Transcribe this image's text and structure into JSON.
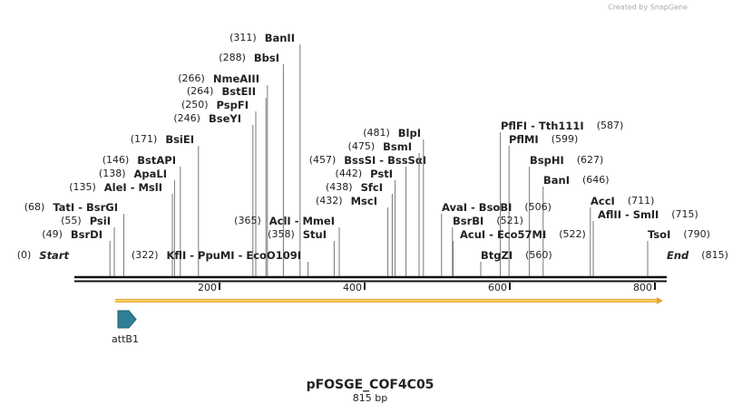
{
  "watermark": "Created by SnapGene",
  "map": {
    "title": "pFOSGE_COF4C05",
    "subtitle": "815 bp",
    "start": {
      "label": "Start",
      "site": {
        "value": 0,
        "label": "(0)"
      }
    },
    "end": {
      "label": "End",
      "site": {
        "value": 815,
        "label": "(815)"
      }
    },
    "ticks": [
      200,
      400,
      600,
      800
    ],
    "features": [
      {
        "label": "attB1"
      }
    ],
    "sites": [
      {
        "label": "BanII",
        "site": {
          "value": 311,
          "label": "(311)"
        }
      },
      {
        "label": "BbsI",
        "site": {
          "value": 288,
          "label": "(288)"
        }
      },
      {
        "label": "NmeAIII",
        "site": {
          "value": 266,
          "label": "(266)"
        }
      },
      {
        "label": "BstEII",
        "site": {
          "value": 264,
          "label": "(264)"
        }
      },
      {
        "label": "PspFI",
        "site": {
          "value": 250,
          "label": "(250)"
        }
      },
      {
        "label": "BseYI",
        "site": {
          "value": 246,
          "label": "(246)"
        }
      },
      {
        "label": "BsiEI",
        "site": {
          "value": 171,
          "label": "(171)"
        }
      },
      {
        "label": "BstAPI",
        "site": {
          "value": 146,
          "label": "(146)"
        }
      },
      {
        "label": "ApaLI",
        "site": {
          "value": 138,
          "label": "(138)"
        }
      },
      {
        "label": "AleI - MslI",
        "site": {
          "value": 135,
          "label": "(135)"
        }
      },
      {
        "label": "TatI - BsrGI",
        "site": {
          "value": 68,
          "label": "(68)"
        }
      },
      {
        "label": "PsiI",
        "site": {
          "value": 55,
          "label": "(55)"
        }
      },
      {
        "label": "BsrDI",
        "site": {
          "value": 49,
          "label": "(49)"
        }
      },
      {
        "label": "KflI - PpuMI - EcoO109I",
        "site": {
          "value": 322,
          "label": "(322)"
        }
      },
      {
        "label": "AclI - MmeI",
        "site": {
          "value": 365,
          "label": "(365)"
        }
      },
      {
        "label": "StuI",
        "site": {
          "value": 358,
          "label": "(358)"
        }
      },
      {
        "label": "BssSI - BssSαI",
        "site": {
          "value": 457,
          "label": "(457)"
        }
      },
      {
        "label": "PstI",
        "site": {
          "value": 442,
          "label": "(442)"
        }
      },
      {
        "label": "SfcI",
        "site": {
          "value": 438,
          "label": "(438)"
        }
      },
      {
        "label": "MscI",
        "site": {
          "value": 432,
          "label": "(432)"
        }
      },
      {
        "label": "BlpI",
        "site": {
          "value": 481,
          "label": "(481)"
        }
      },
      {
        "label": "BsmI",
        "site": {
          "value": 475,
          "label": "(475)"
        }
      },
      {
        "label": "PflFI - Tth111I",
        "site": {
          "value": 587,
          "label": "(587)"
        }
      },
      {
        "label": "PflMI",
        "site": {
          "value": 599,
          "label": "(599)"
        }
      },
      {
        "label": "BspHI",
        "site": {
          "value": 627,
          "label": "(627)"
        }
      },
      {
        "label": "BanI",
        "site": {
          "value": 646,
          "label": "(646)"
        }
      },
      {
        "label": "AvaI - BsoBI",
        "site": {
          "value": 506,
          "label": "(506)"
        }
      },
      {
        "label": "BsrBI",
        "site": {
          "value": 521,
          "label": "(521)"
        }
      },
      {
        "label": "AcuI - Eco57MI",
        "site": {
          "value": 522,
          "label": "(522)"
        }
      },
      {
        "label": "BtgZI",
        "site": {
          "value": 560,
          "label": "(560)"
        }
      },
      {
        "label": "AccI",
        "site": {
          "value": 711,
          "label": "(711)"
        }
      },
      {
        "label": "AflII - SmlI",
        "site": {
          "value": 715,
          "label": "(715)"
        }
      },
      {
        "label": "TsoI",
        "site": {
          "value": 790,
          "label": "(790)"
        }
      }
    ]
  }
}
